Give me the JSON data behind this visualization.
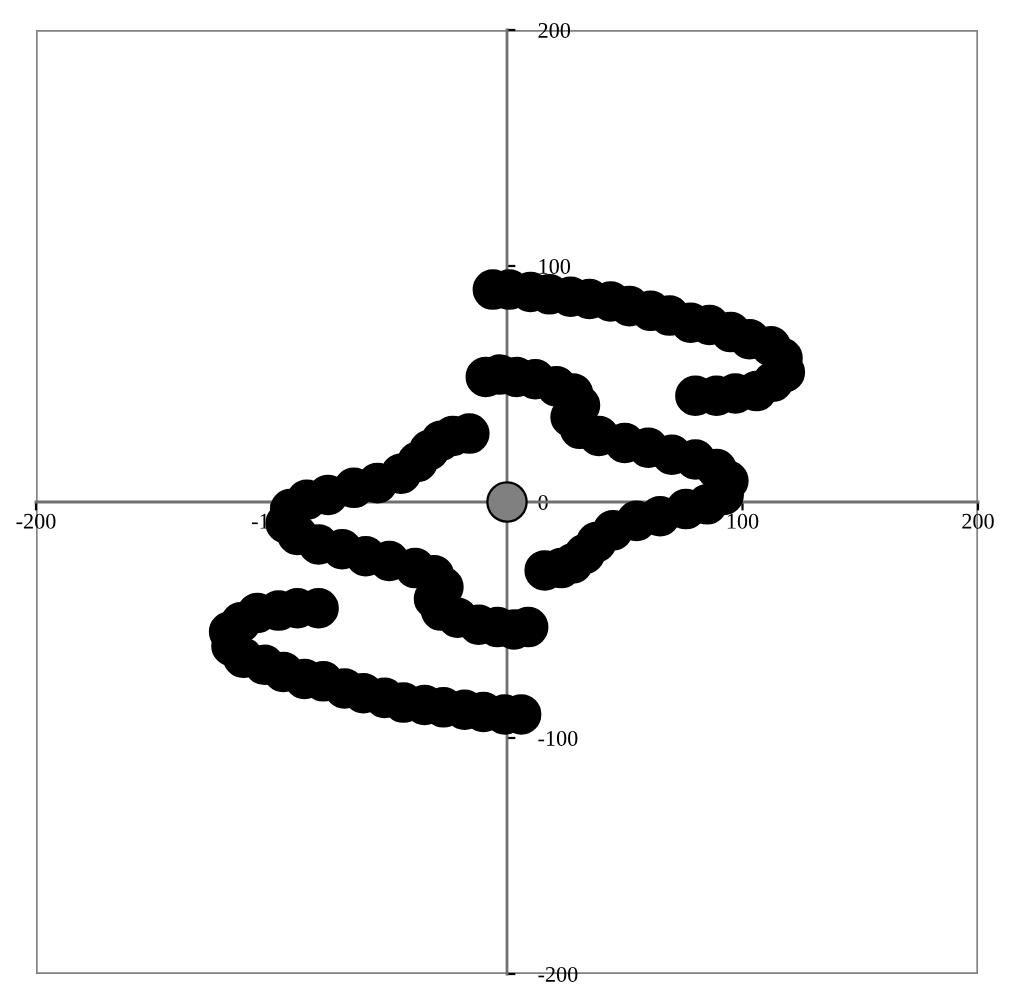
{
  "chart_data": {
    "type": "scatter",
    "xlim": [
      -200,
      200
    ],
    "ylim": [
      -200,
      200
    ],
    "xticks": [
      -200,
      -100,
      100,
      200
    ],
    "yticks": [
      -200,
      -100,
      0,
      100,
      200
    ],
    "grid": false,
    "legend": false,
    "marker": "circle",
    "series": [
      {
        "color": "#000000",
        "x": [
          -6,
          1,
          10,
          18,
          27,
          35,
          44,
          52,
          61,
          69,
          78,
          86,
          95,
          103,
          112,
          117,
          118,
          113,
          106,
          97,
          89,
          80,
          -9,
          -3,
          4,
          12,
          21,
          28,
          31,
          27,
          31,
          39,
          50,
          60,
          70,
          80,
          89,
          94,
          92,
          85,
          76,
          65,
          55,
          45,
          38,
          33,
          28,
          23,
          16,
          6,
          -1,
          -10,
          -18,
          -27,
          -35,
          -44,
          -52,
          -61,
          -69,
          -78,
          -86,
          -95,
          -103,
          -112,
          -117,
          -118,
          -113,
          -106,
          -97,
          -89,
          -80,
          9,
          3,
          -4,
          -12,
          -21,
          -28,
          -31,
          -27,
          -31,
          -39,
          -50,
          -60,
          -70,
          -80,
          -89,
          -94,
          -92,
          -85,
          -76,
          -65,
          -55,
          -45,
          -38,
          -33,
          -28,
          -23,
          -16
        ],
        "values": [
          90,
          90,
          89,
          88,
          87,
          86,
          85,
          83,
          81,
          79,
          76,
          75,
          72,
          69,
          66,
          61,
          55,
          51,
          47,
          46,
          45,
          45,
          53,
          54,
          53,
          52,
          49,
          46,
          41,
          36,
          31,
          28,
          25,
          23,
          20,
          18,
          14,
          9,
          3,
          -1,
          -3,
          -6,
          -8,
          -12,
          -17,
          -22,
          -26,
          -28,
          -29,
          -90,
          -90,
          -89,
          -88,
          -87,
          -86,
          -85,
          -83,
          -81,
          -79,
          -76,
          -75,
          -72,
          -69,
          -66,
          -61,
          -55,
          -51,
          -47,
          -46,
          -45,
          -45,
          -53,
          -54,
          -53,
          -52,
          -49,
          -46,
          -41,
          -36,
          -31,
          -28,
          -25,
          -23,
          -20,
          -18,
          -14,
          -9,
          -3,
          1,
          3,
          6,
          8,
          12,
          17,
          22,
          26,
          28,
          29
        ]
      },
      {
        "color": "#808080",
        "x": [
          0
        ],
        "values": [
          0
        ]
      }
    ]
  }
}
